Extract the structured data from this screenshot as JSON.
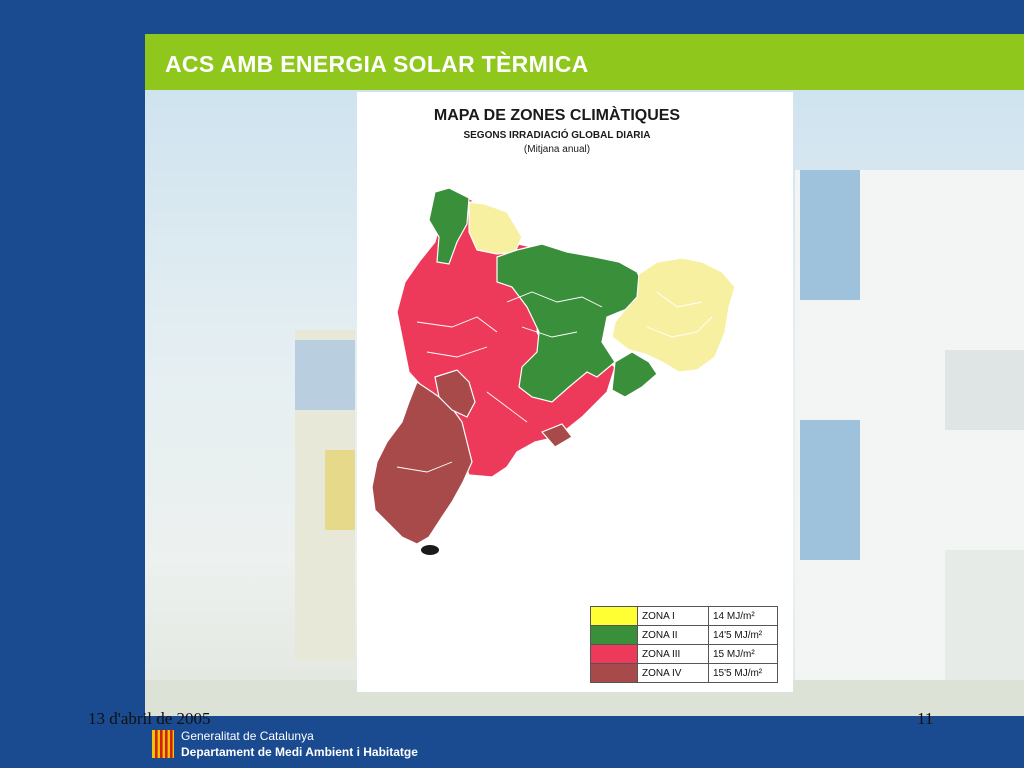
{
  "slide": {
    "title": "ACS AMB ENERGIA SOLAR TÈRMICA",
    "date": "13 d'abril de 2005",
    "page_number": "11"
  },
  "map": {
    "title": "MAPA DE ZONES CLIMÀTIQUES",
    "subtitle": "SEGONS IRRADIACIÓ GLOBAL DIARIA",
    "note": "(Mitjana anual)"
  },
  "legend": [
    {
      "zone": "ZONA I",
      "value": "14 MJ/m²",
      "color": "#ffff33"
    },
    {
      "zone": "ZONA II",
      "value": "14'5 MJ/m²",
      "color": "#3a8f3a"
    },
    {
      "zone": "ZONA III",
      "value": "15 MJ/m²",
      "color": "#ee3a5a"
    },
    {
      "zone": "ZONA IV",
      "value": "15'5 MJ/m²",
      "color": "#a84a4a"
    }
  ],
  "footer": {
    "org_line1": "Generalitat de Catalunya",
    "org_line2": "Departament de Medi Ambient i Habitatge",
    "logo_icon": "generalitat-senyera-logo-icon"
  },
  "colors": {
    "frame": "#1a4a90",
    "title_bar": "#8fc71d",
    "zone_i_map": "#f7f0a0",
    "zone_ii_map": "#3a8f3a",
    "zone_iii_map": "#ee3a5a",
    "zone_iv_map": "#a84a4a"
  }
}
